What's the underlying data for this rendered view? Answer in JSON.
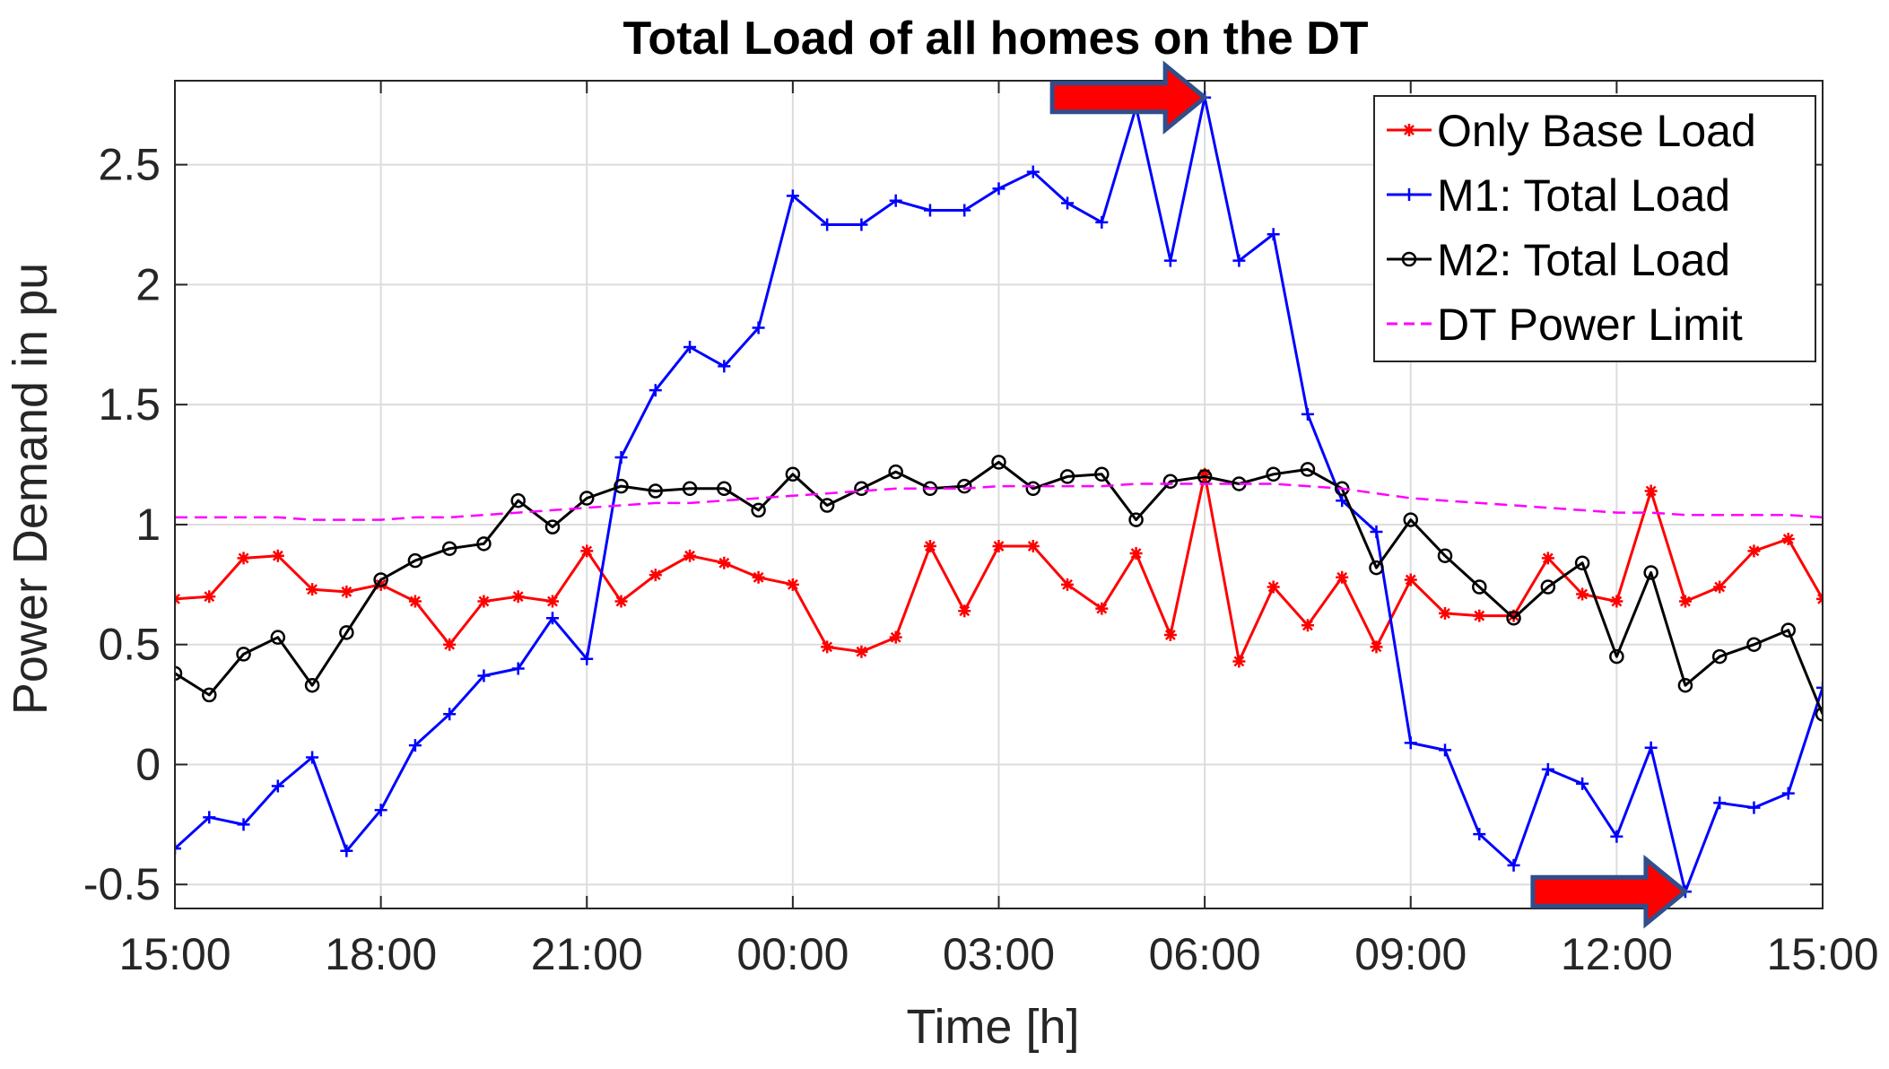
{
  "chart_data": {
    "type": "line",
    "title": "Total Load of all homes on the DT",
    "xlabel": "Time [h]",
    "ylabel": "Power Demand in pu",
    "x_tick_labels": [
      "15:00",
      "18:00",
      "21:00",
      "00:00",
      "03:00",
      "06:00",
      "09:00",
      "12:00",
      "15:00"
    ],
    "x_tick_hours": [
      0,
      3,
      6,
      9,
      12,
      15,
      18,
      21,
      24
    ],
    "y_ticks": [
      -0.5,
      0,
      0.5,
      1,
      1.5,
      2,
      2.5
    ],
    "y_tick_labels": [
      "-0.5",
      "0",
      "0.5",
      "1",
      "1.5",
      "2",
      "2.5"
    ],
    "xlim_hours": [
      0,
      24
    ],
    "ylim": [
      -0.6,
      2.85
    ],
    "x_step_hours": 0.5,
    "grid": true,
    "legend_position": "top-right",
    "series": [
      {
        "name": "Only Base Load",
        "color": "#ff0000",
        "marker": "asterisk",
        "dash": "solid",
        "values": [
          0.69,
          0.7,
          0.86,
          0.87,
          0.73,
          0.72,
          0.75,
          0.68,
          0.5,
          0.68,
          0.7,
          0.68,
          0.89,
          0.68,
          0.79,
          0.87,
          0.84,
          0.78,
          0.75,
          0.49,
          0.47,
          0.53,
          0.91,
          0.64,
          0.91,
          0.91,
          0.75,
          0.65,
          0.88,
          0.54,
          1.21,
          0.43,
          0.74,
          0.58,
          0.78,
          0.49,
          0.77,
          0.63,
          0.62,
          0.62,
          0.86,
          0.71,
          0.68,
          1.14,
          0.68,
          0.74,
          0.89,
          0.94,
          0.69
        ]
      },
      {
        "name": "M1: Total Load",
        "color": "#0000ff",
        "marker": "plus",
        "dash": "solid",
        "values": [
          -0.35,
          -0.22,
          -0.25,
          -0.09,
          0.03,
          -0.36,
          -0.19,
          0.08,
          0.21,
          0.37,
          0.4,
          0.61,
          0.44,
          1.28,
          1.56,
          1.74,
          1.66,
          1.82,
          2.37,
          2.25,
          2.25,
          2.35,
          2.31,
          2.31,
          2.4,
          2.47,
          2.34,
          2.26,
          2.74,
          2.1,
          2.78,
          2.1,
          2.21,
          1.46,
          1.1,
          0.97,
          0.09,
          0.06,
          -0.29,
          -0.42,
          -0.02,
          -0.08,
          -0.3,
          0.07,
          -0.53,
          -0.16,
          -0.18,
          -0.12,
          0.32
        ]
      },
      {
        "name": "M2: Total Load",
        "color": "#000000",
        "marker": "circle",
        "dash": "solid",
        "values": [
          0.38,
          0.29,
          0.46,
          0.53,
          0.33,
          0.55,
          0.77,
          0.85,
          0.9,
          0.92,
          1.1,
          0.99,
          1.11,
          1.16,
          1.14,
          1.15,
          1.15,
          1.06,
          1.21,
          1.08,
          1.15,
          1.22,
          1.15,
          1.16,
          1.26,
          1.15,
          1.2,
          1.21,
          1.02,
          1.18,
          1.2,
          1.17,
          1.21,
          1.23,
          1.15,
          0.82,
          1.02,
          0.87,
          0.74,
          0.61,
          0.74,
          0.84,
          0.45,
          0.8,
          0.33,
          0.45,
          0.5,
          0.56,
          0.21
        ]
      },
      {
        "name": "DT Power Limit",
        "color": "#ff00ff",
        "marker": "none",
        "dash": "dashed",
        "values": [
          1.03,
          1.03,
          1.03,
          1.03,
          1.02,
          1.02,
          1.02,
          1.03,
          1.03,
          1.04,
          1.05,
          1.06,
          1.07,
          1.08,
          1.09,
          1.09,
          1.1,
          1.11,
          1.12,
          1.13,
          1.14,
          1.15,
          1.15,
          1.15,
          1.16,
          1.16,
          1.16,
          1.16,
          1.17,
          1.17,
          1.17,
          1.17,
          1.17,
          1.16,
          1.15,
          1.13,
          1.11,
          1.1,
          1.09,
          1.08,
          1.07,
          1.06,
          1.05,
          1.05,
          1.04,
          1.04,
          1.04,
          1.04,
          1.03
        ]
      }
    ],
    "annotations": [
      {
        "type": "arrow",
        "color": "#ff0000",
        "outline": "#2f4e8c",
        "points_to_hour": 15.0,
        "points_to_value": 2.78
      },
      {
        "type": "arrow",
        "color": "#ff0000",
        "outline": "#2f4e8c",
        "points_to_hour": 22.0,
        "points_to_value": -0.53
      }
    ]
  }
}
